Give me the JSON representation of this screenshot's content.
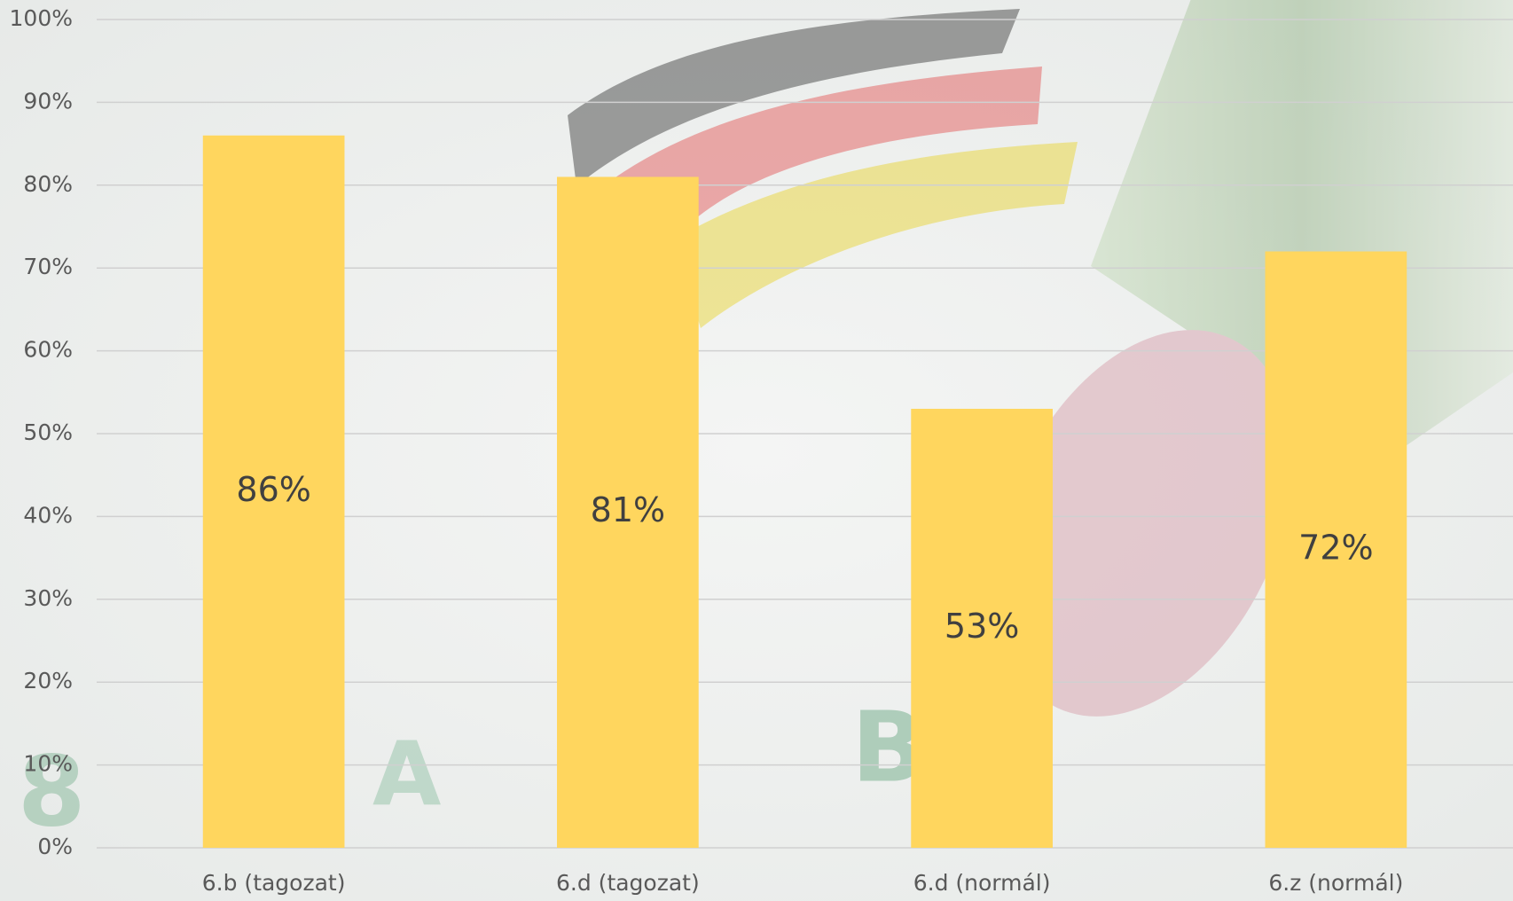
{
  "chart_data": {
    "type": "bar",
    "categories": [
      "6.b (tagozat)",
      "6.d (tagozat)",
      "6.d (normál)",
      "6.z (normál)"
    ],
    "values": [
      86,
      81,
      53,
      72
    ],
    "value_labels": [
      "86%",
      "81%",
      "53%",
      "72%"
    ],
    "color": "#ffd65e",
    "ylim": [
      0,
      100
    ],
    "yticks": [
      {
        "value": 0,
        "label": "0%"
      },
      {
        "value": 10,
        "label": "10%"
      },
      {
        "value": 20,
        "label": "20%"
      },
      {
        "value": 30,
        "label": "30%"
      },
      {
        "value": 40,
        "label": "40%"
      },
      {
        "value": 50,
        "label": "50%"
      },
      {
        "value": 60,
        "label": "60%"
      },
      {
        "value": 70,
        "label": "70%"
      },
      {
        "value": 80,
        "label": "80%"
      },
      {
        "value": 90,
        "label": "90%"
      },
      {
        "value": 100,
        "label": "100%"
      }
    ],
    "grid": true
  }
}
